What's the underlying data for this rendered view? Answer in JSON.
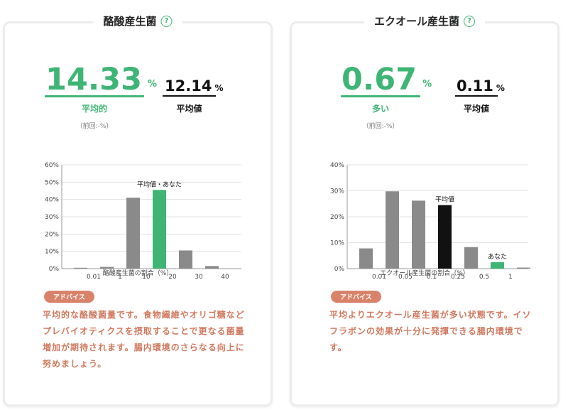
{
  "colors": {
    "accent": "#3fb575",
    "bar": "#8a8a8a",
    "highlight": "#111111",
    "advice": "#d1795f",
    "advice_badge": "#d9826a"
  },
  "cards": [
    {
      "title": "酪酸産生菌",
      "help_icon": "question-circle-icon",
      "value": "14.33",
      "value_unit": "%",
      "status_label": "平均的",
      "previous": "（前回:-%）",
      "average_value": "12.14",
      "average_unit": "%",
      "average_label": "平均値",
      "chart_caption": "酪酸産生菌の割合（%）",
      "advice_badge": "アドバイス",
      "advice_text": "平均的な酪酸菌量です。食物繊維やオリゴ糖などプレバイオティクスを摂取することで更なる菌量増加が期待されます。腸内環境のさらなる向上に努めましょう。"
    },
    {
      "title": "エクオール産生菌",
      "help_icon": "question-circle-icon",
      "value": "0.67",
      "value_unit": "%",
      "status_label": "多い",
      "previous": "（前回:-%）",
      "average_value": "0.11",
      "average_unit": "%",
      "average_label": "平均値",
      "chart_caption": "エクオール産生菌の割合（%）",
      "advice_badge": "アドバイス",
      "advice_text": "平均よりエクオール産生菌が多い状態です。イソフラボンの効果が十分に発揮できる腸内環境です。"
    }
  ],
  "chart_data": [
    {
      "type": "bar",
      "x_tick_labels": [
        "0.01",
        "1",
        "10",
        "20",
        "30",
        "40"
      ],
      "bins": [
        "0-0.01",
        "0.01-1",
        "1-10",
        "10-20",
        "20-30",
        "30-40"
      ],
      "values": [
        0,
        1,
        41,
        45.5,
        10.5,
        1.5
      ],
      "highlight_bin": 3,
      "highlight_kind": "green",
      "annotations": [
        {
          "bin": 3,
          "text": "平均値・あなた"
        }
      ],
      "yticks": [
        "0%",
        "10%",
        "20%",
        "30%",
        "40%",
        "50%",
        "60%"
      ],
      "ylim": [
        0,
        60
      ],
      "xlabel": "酪酸産生菌の割合（%）",
      "grid": true
    },
    {
      "type": "bar",
      "x_tick_labels": [
        "0.01",
        "0.05",
        "0.1",
        "0.25",
        "0.5",
        "1"
      ],
      "bins": [
        "0-0.01",
        "0.01-0.05",
        "0.05-0.1",
        "0.1-0.25",
        "0.25-0.5",
        "0.5-1",
        "1+"
      ],
      "values": [
        7.8,
        29.8,
        26.2,
        24.5,
        8.3,
        2.5,
        0.4
      ],
      "highlight_bin": 5,
      "average_bin": 3,
      "annotations": [
        {
          "bin": 3,
          "text": "平均値"
        },
        {
          "bin": 5,
          "text": "あなた"
        }
      ],
      "yticks": [
        "0%",
        "10%",
        "20%",
        "30%",
        "40%"
      ],
      "ylim": [
        0,
        40
      ],
      "xlabel": "エクオール産生菌の割合（%）",
      "grid": true
    }
  ]
}
